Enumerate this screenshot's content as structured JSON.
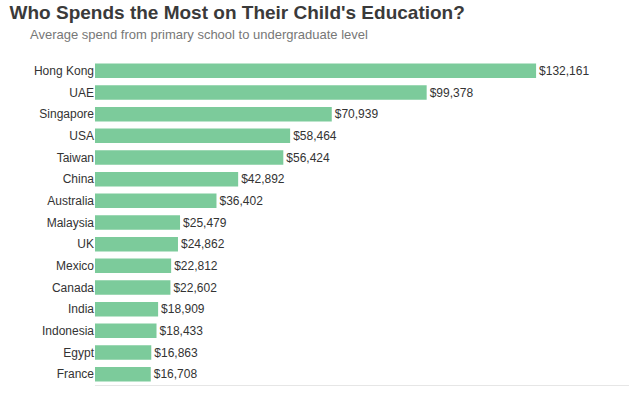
{
  "chart_data": {
    "type": "bar",
    "orientation": "horizontal",
    "title": "Who Spends the Most on Their Child's Education?",
    "subtitle": "Average spend from primary school to undergraduate level",
    "categories": [
      "Hong Kong",
      "UAE",
      "Singapore",
      "USA",
      "Taiwan",
      "China",
      "Australia",
      "Malaysia",
      "UK",
      "Mexico",
      "Canada",
      "India",
      "Indonesia",
      "Egypt",
      "France"
    ],
    "values": [
      132161,
      99378,
      70939,
      58464,
      56424,
      42892,
      36402,
      25479,
      24862,
      22812,
      22602,
      18909,
      18433,
      16863,
      16708
    ],
    "value_labels": [
      "$132,161",
      "$99,378",
      "$70,939",
      "$58,464",
      "$56,424",
      "$42,892",
      "$36,402",
      "$25,479",
      "$24,862",
      "$22,812",
      "$22,602",
      "$18,909",
      "$18,433",
      "$16,863",
      "$16,708"
    ],
    "color": "#7ccb9b",
    "xlim": [
      0,
      160000
    ],
    "data_labels": true,
    "tick_labels": "y",
    "grid": false
  }
}
